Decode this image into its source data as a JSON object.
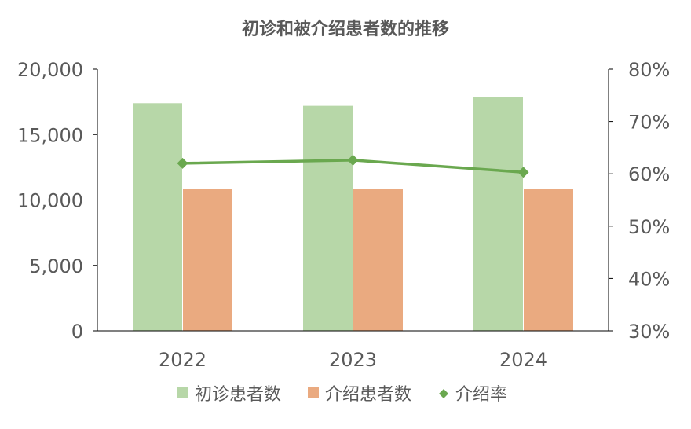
{
  "chart_data": {
    "type": "bar",
    "title": "初诊和被介绍患者数的推移",
    "categories": [
      "2022",
      "2023",
      "2024"
    ],
    "series": [
      {
        "name": "初诊患者数",
        "type": "bar",
        "axis": "left",
        "color": "#b7d7a8",
        "values": [
          17400,
          17200,
          17850
        ]
      },
      {
        "name": "介绍患者数",
        "type": "bar",
        "axis": "left",
        "color": "#eaaa80",
        "values": [
          10850,
          10850,
          10850
        ]
      },
      {
        "name": "介绍率",
        "type": "line",
        "axis": "right",
        "color": "#6aa84f",
        "values": [
          62.0,
          62.6,
          60.3
        ]
      }
    ],
    "y_left": {
      "min": 0,
      "max": 20000,
      "ticks": [
        "0",
        "5,000",
        "10,000",
        "15,000",
        "20,000"
      ],
      "tick_values": [
        0,
        5000,
        10000,
        15000,
        20000
      ]
    },
    "y_right": {
      "min": 30,
      "max": 80,
      "ticks": [
        "30%",
        "40%",
        "50%",
        "60%",
        "70%",
        "80%"
      ],
      "tick_values": [
        30,
        40,
        50,
        60,
        70,
        80
      ]
    },
    "grid": false,
    "legend_position": "bottom"
  }
}
